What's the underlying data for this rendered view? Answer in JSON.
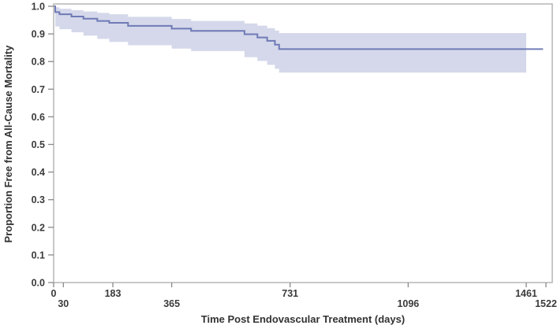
{
  "figure": {
    "background_color": "#ffffff",
    "frame_color": "#ababab",
    "tick_color": "#8a8a8a",
    "text_color": "#3b3b3b"
  },
  "chart_data": {
    "type": "line",
    "subtype": "kaplan-meier-step-with-confidence-band",
    "title": "",
    "xlabel": "Time Post Endovascular Treatment (days)",
    "ylabel": "Proportion Free from All-Cause Mortality",
    "xlim": [
      0,
      1522
    ],
    "ylim": [
      0.0,
      1.0
    ],
    "grid": false,
    "legend": "none",
    "x_ticks": [
      {
        "value": 0,
        "label": "0",
        "row": 0
      },
      {
        "value": 30,
        "label": "30",
        "row": 1
      },
      {
        "value": 183,
        "label": "183",
        "row": 0
      },
      {
        "value": 365,
        "label": "365",
        "row": 1
      },
      {
        "value": 731,
        "label": "731",
        "row": 0
      },
      {
        "value": 1096,
        "label": "1096",
        "row": 1
      },
      {
        "value": 1461,
        "label": "1461",
        "row": 0
      },
      {
        "value": 1522,
        "label": "1522",
        "row": 1
      }
    ],
    "y_ticks": [
      {
        "value": 0.0,
        "label": "0.0"
      },
      {
        "value": 0.1,
        "label": "0.1"
      },
      {
        "value": 0.2,
        "label": "0.2"
      },
      {
        "value": 0.3,
        "label": "0.3"
      },
      {
        "value": 0.4,
        "label": "0.4"
      },
      {
        "value": 0.5,
        "label": "0.5"
      },
      {
        "value": 0.6,
        "label": "0.6"
      },
      {
        "value": 0.7,
        "label": "0.7"
      },
      {
        "value": 0.8,
        "label": "0.8"
      },
      {
        "value": 0.9,
        "label": "0.9"
      },
      {
        "value": 1.0,
        "label": "1.0"
      }
    ],
    "series": [
      {
        "id": "freedom-from-all-cause-mortality",
        "line_color": "#6470b0",
        "band_color": "#d0d5e8",
        "band_end_time": 1461,
        "line_end_time": 1513,
        "points": [
          {
            "t": 0,
            "v": 1.0,
            "u": 1.0,
            "l": 1.0
          },
          {
            "t": 5,
            "v": 0.979,
            "u": 0.996,
            "l": 0.927
          },
          {
            "t": 18,
            "v": 0.971,
            "u": 0.991,
            "l": 0.917
          },
          {
            "t": 55,
            "v": 0.963,
            "u": 0.986,
            "l": 0.906
          },
          {
            "t": 92,
            "v": 0.955,
            "u": 0.981,
            "l": 0.894
          },
          {
            "t": 135,
            "v": 0.947,
            "u": 0.976,
            "l": 0.882
          },
          {
            "t": 172,
            "v": 0.94,
            "u": 0.971,
            "l": 0.871
          },
          {
            "t": 230,
            "v": 0.929,
            "u": 0.962,
            "l": 0.859
          },
          {
            "t": 365,
            "v": 0.919,
            "u": 0.954,
            "l": 0.847
          },
          {
            "t": 425,
            "v": 0.911,
            "u": 0.947,
            "l": 0.838
          },
          {
            "t": 590,
            "v": 0.899,
            "u": 0.938,
            "l": 0.816
          },
          {
            "t": 630,
            "v": 0.887,
            "u": 0.93,
            "l": 0.802
          },
          {
            "t": 660,
            "v": 0.875,
            "u": 0.921,
            "l": 0.788
          },
          {
            "t": 684,
            "v": 0.861,
            "u": 0.912,
            "l": 0.774
          },
          {
            "t": 697,
            "v": 0.845,
            "u": 0.903,
            "l": 0.76
          }
        ]
      }
    ]
  }
}
